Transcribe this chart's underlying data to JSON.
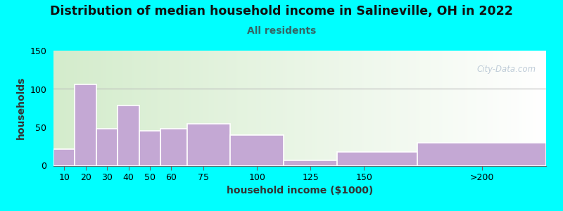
{
  "title": "Distribution of median household income in Salineville, OH in 2022",
  "subtitle": "All residents",
  "xlabel": "household income ($1000)",
  "ylabel": "households",
  "background_outer": "#00FFFF",
  "bar_color": "#C4A8D4",
  "bar_edge_color": "#FFFFFF",
  "values": [
    22,
    106,
    48,
    78,
    45,
    48,
    55,
    40,
    7,
    18,
    30
  ],
  "ylim": [
    0,
    150
  ],
  "yticks": [
    0,
    50,
    100,
    150
  ],
  "title_fontsize": 12.5,
  "subtitle_fontsize": 10,
  "axis_label_fontsize": 10,
  "tick_fontsize": 9,
  "subtitle_color": "#336666",
  "title_color": "#111111",
  "watermark": "City-Data.com",
  "xtick_labels": [
    "10",
    "20",
    "30",
    "40",
    "50",
    "60",
    "75",
    "100",
    "125",
    "150",
    ">200"
  ],
  "bin_edges": [
    5,
    15,
    25,
    35,
    45,
    55,
    67.5,
    87.5,
    112.5,
    137.5,
    175,
    235
  ],
  "grad_left": "#d4eccc",
  "grad_right": "#ffffff"
}
